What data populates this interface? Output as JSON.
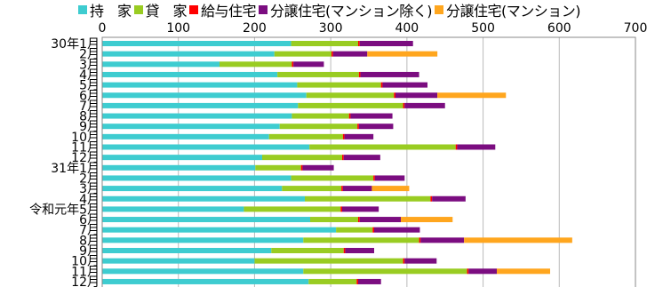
{
  "chart_data": {
    "type": "bar",
    "orientation": "horizontal",
    "stacked": true,
    "title": "",
    "xlabel": "",
    "ylabel": "",
    "xlim": [
      0,
      700
    ],
    "x_ticks": [
      "0",
      "100",
      "200",
      "300",
      "400",
      "500",
      "600",
      "700"
    ],
    "grid": "vertical",
    "legend_position": "top",
    "categories": [
      "30年1月",
      "2月",
      "3月",
      "4月",
      "5月",
      "6月",
      "7月",
      "8月",
      "9月",
      "10月",
      "11月",
      "12月",
      "31年1月",
      "2月",
      "3月",
      "4月",
      "令和元年5月",
      "6月",
      "7月",
      "8月",
      "9月",
      "10月",
      "11月",
      "12月"
    ],
    "series": [
      {
        "name": "持　家",
        "color": "#3ECCD0",
        "values": [
          248,
          226,
          154,
          230,
          256,
          268,
          257,
          249,
          233,
          219,
          272,
          210,
          201,
          248,
          236,
          266,
          186,
          273,
          307,
          264,
          222,
          200,
          264,
          271
        ]
      },
      {
        "name": "貸　家",
        "color": "#99CC22",
        "values": [
          88,
          75,
          95,
          107,
          110,
          115,
          138,
          75,
          102,
          97,
          192,
          105,
          60,
          108,
          78,
          165,
          127,
          63,
          48,
          152,
          95,
          195,
          215,
          63
        ]
      },
      {
        "name": "給与住宅",
        "color": "#FF0000",
        "values": [
          2,
          2,
          2,
          2,
          2,
          2,
          2,
          2,
          2,
          2,
          2,
          2,
          2,
          2,
          2,
          2,
          2,
          2,
          2,
          2,
          2,
          2,
          2,
          2
        ]
      },
      {
        "name": "分譲住宅(マンション除く)",
        "color": "#7B0D80",
        "values": [
          70,
          45,
          40,
          77,
          59,
          55,
          53,
          55,
          45,
          38,
          50,
          48,
          41,
          39,
          38,
          44,
          48,
          54,
          60,
          57,
          38,
          42,
          37,
          30
        ]
      },
      {
        "name": "分譲住宅(マンション)",
        "color": "#FFA61E",
        "values": [
          0,
          92,
          0,
          0,
          0,
          90,
          0,
          0,
          0,
          0,
          0,
          0,
          0,
          0,
          49,
          0,
          0,
          68,
          0,
          142,
          0,
          0,
          70,
          0
        ]
      }
    ]
  }
}
